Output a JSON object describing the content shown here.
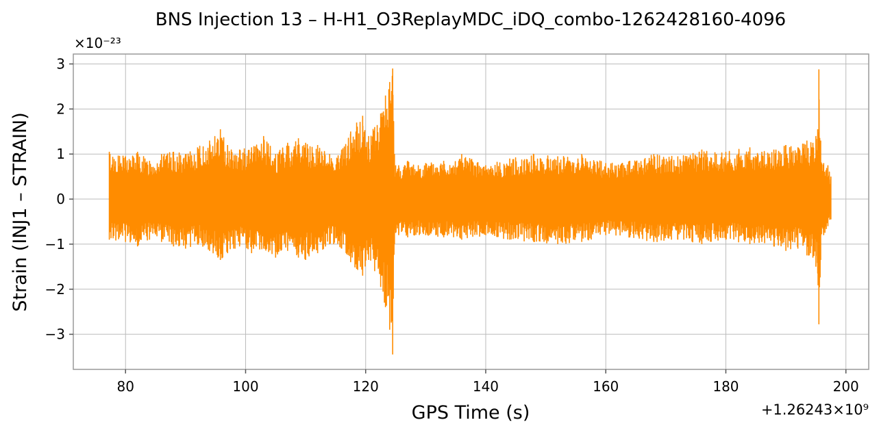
{
  "chart_data": {
    "type": "line",
    "title": "BNS Injection 13 – H-H1_O3ReplayMDC_iDQ_combo-1262428160-4096",
    "xlabel": "GPS Time (s)",
    "ylabel": "Strain (INJ1 – STRAIN)",
    "x_offset_label": "+1.26243×10⁹",
    "y_scale_label": "×10⁻²³",
    "xlim": [
      71.3,
      203.8
    ],
    "ylim": [
      -3.78,
      3.22
    ],
    "xticks": [
      80,
      100,
      120,
      140,
      160,
      180,
      200
    ],
    "xtick_labels": [
      "80",
      "100",
      "120",
      "140",
      "160",
      "180",
      "200"
    ],
    "yticks": [
      -3,
      -2,
      -1,
      0,
      1,
      2,
      3
    ],
    "ytick_labels": [
      "−3",
      "−2",
      "−1",
      "0",
      "1",
      "2",
      "3"
    ],
    "grid": true,
    "series": [
      {
        "color": "#ff8c00",
        "x_range": [
          77.3,
          197.5
        ],
        "envelope": {
          "x": [
            77.3,
            80.0,
            82.0,
            84.0,
            86.0,
            88.0,
            90.0,
            92.0,
            94.0,
            95.8,
            97.0,
            99.0,
            101.0,
            103.0,
            105.0,
            107.0,
            108.8,
            110.0,
            112.0,
            114.0,
            116.0,
            117.5,
            118.5,
            119.5,
            120.5,
            121.5,
            122.5,
            123.3,
            124.0,
            124.5,
            124.8,
            125.0,
            125.5,
            127.0,
            130.0,
            133.0,
            136.0,
            140.0,
            144.0,
            148.0,
            152.0,
            156.0,
            160.0,
            164.0,
            168.0,
            172.0,
            176.0,
            180.0,
            184.0,
            186.0,
            188.0,
            190.0,
            192.0,
            193.5,
            194.5,
            195.0,
            195.3,
            195.5,
            195.8,
            196.3,
            197.0,
            197.5
          ],
          "upper": [
            1.05,
            0.95,
            1.05,
            0.85,
            1.0,
            1.05,
            1.0,
            1.15,
            1.3,
            1.55,
            1.2,
            1.1,
            1.15,
            1.4,
            1.0,
            1.25,
            1.35,
            1.25,
            1.2,
            1.0,
            1.1,
            1.5,
            1.7,
            1.85,
            1.4,
            1.6,
            1.9,
            2.3,
            2.6,
            2.9,
            1.0,
            0.75,
            0.75,
            0.85,
            0.8,
            0.85,
            1.0,
            0.75,
            0.9,
            1.0,
            0.95,
            1.0,
            0.8,
            0.85,
            1.0,
            0.95,
            1.1,
            1.05,
            1.15,
            1.05,
            1.1,
            1.2,
            1.15,
            1.3,
            1.25,
            1.4,
            1.55,
            2.88,
            1.3,
            0.8,
            0.75,
            0.5
          ],
          "lower": [
            -0.9,
            -0.95,
            -1.05,
            -0.9,
            -0.95,
            -1.05,
            -1.1,
            -1.0,
            -1.15,
            -1.35,
            -1.2,
            -1.05,
            -1.2,
            -1.1,
            -1.3,
            -1.15,
            -1.3,
            -1.35,
            -1.2,
            -1.0,
            -1.1,
            -1.4,
            -1.55,
            -1.7,
            -1.35,
            -1.6,
            -1.95,
            -2.4,
            -2.9,
            -3.45,
            -1.0,
            -0.75,
            -0.8,
            -0.85,
            -0.8,
            -0.85,
            -0.9,
            -0.8,
            -0.9,
            -0.95,
            -1.0,
            -0.95,
            -0.8,
            -0.85,
            -0.95,
            -0.9,
            -1.0,
            -0.9,
            -1.0,
            -0.95,
            -1.05,
            -1.15,
            -1.1,
            -1.25,
            -1.3,
            -1.5,
            -1.65,
            -2.78,
            -1.35,
            -0.8,
            -0.6,
            -0.45
          ]
        }
      }
    ]
  }
}
